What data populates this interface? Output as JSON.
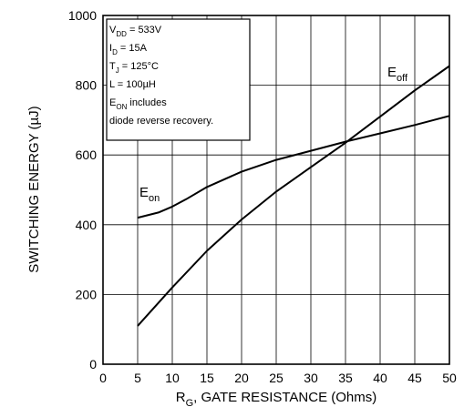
{
  "chart_data": {
    "type": "line",
    "xlabel": {
      "main": "R",
      "sub": "G",
      "rest": ", GATE RESISTANCE (Ohms)"
    },
    "ylabel": "SWITCHING ENERGY (µJ)",
    "xlim": [
      0,
      50
    ],
    "ylim": [
      0,
      1000
    ],
    "x_ticks": [
      "0",
      "5",
      "10",
      "15",
      "20",
      "25",
      "30",
      "35",
      "40",
      "45",
      "50"
    ],
    "y_ticks": [
      "0",
      "200",
      "400",
      "600",
      "800",
      "1000"
    ],
    "grid": true,
    "series": [
      {
        "name": "E_on",
        "label_main": "E",
        "label_sub": "on",
        "x": [
          5,
          8,
          10,
          12,
          15,
          20,
          25,
          30,
          35,
          40,
          45,
          50
        ],
        "y": [
          420,
          435,
          452,
          473,
          508,
          552,
          586,
          612,
          638,
          662,
          686,
          712
        ]
      },
      {
        "name": "E_off",
        "label_main": "E",
        "label_sub": "off",
        "x": [
          5,
          10,
          15,
          20,
          25,
          30,
          35,
          40,
          45,
          50
        ],
        "y": [
          110,
          220,
          325,
          415,
          495,
          565,
          635,
          710,
          785,
          855
        ]
      }
    ],
    "annotations": [
      {
        "main": "V",
        "sub": "DD",
        "rest": " = 533V"
      },
      {
        "main": "I",
        "sub": "D",
        "rest": " = 15A"
      },
      {
        "main": "T",
        "sub": "J",
        "rest": " = 125°C"
      },
      {
        "main": "L = 100µH",
        "sub": "",
        "rest": ""
      },
      {
        "main": "E",
        "sub": "ON",
        "rest": "  includes"
      },
      {
        "main": "diode  reverse  recovery.",
        "sub": "",
        "rest": ""
      }
    ]
  }
}
